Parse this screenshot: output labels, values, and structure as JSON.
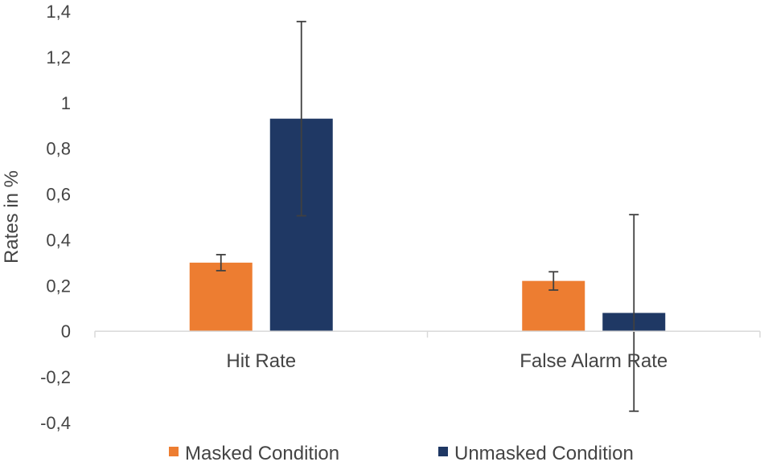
{
  "chart_data": {
    "type": "bar",
    "title": "",
    "xlabel": "",
    "ylabel": "Rates in %",
    "ylim": [
      -0.4,
      1.4
    ],
    "ytick_step": 0.2,
    "ytick_labels": [
      "-0,4",
      "-0,2",
      "0",
      "0,2",
      "0,4",
      "0,6",
      "0,8",
      "1",
      "1,2",
      "1,4"
    ],
    "categories": [
      "Hit Rate",
      "False Alarm Rate"
    ],
    "series": [
      {
        "name": "Masked Condition",
        "color": "#ED7D31",
        "values": [
          0.3,
          0.22
        ],
        "error": [
          0.035,
          0.04
        ]
      },
      {
        "name": "Unmasked Condition",
        "color": "#1F3864",
        "values": [
          0.93,
          0.08
        ],
        "error": [
          0.425,
          0.43
        ]
      }
    ],
    "grid": false,
    "legend_position": "bottom",
    "colors": {
      "axis": "#D9D9D9",
      "error_bar": "#404040",
      "text": "#444444"
    }
  }
}
